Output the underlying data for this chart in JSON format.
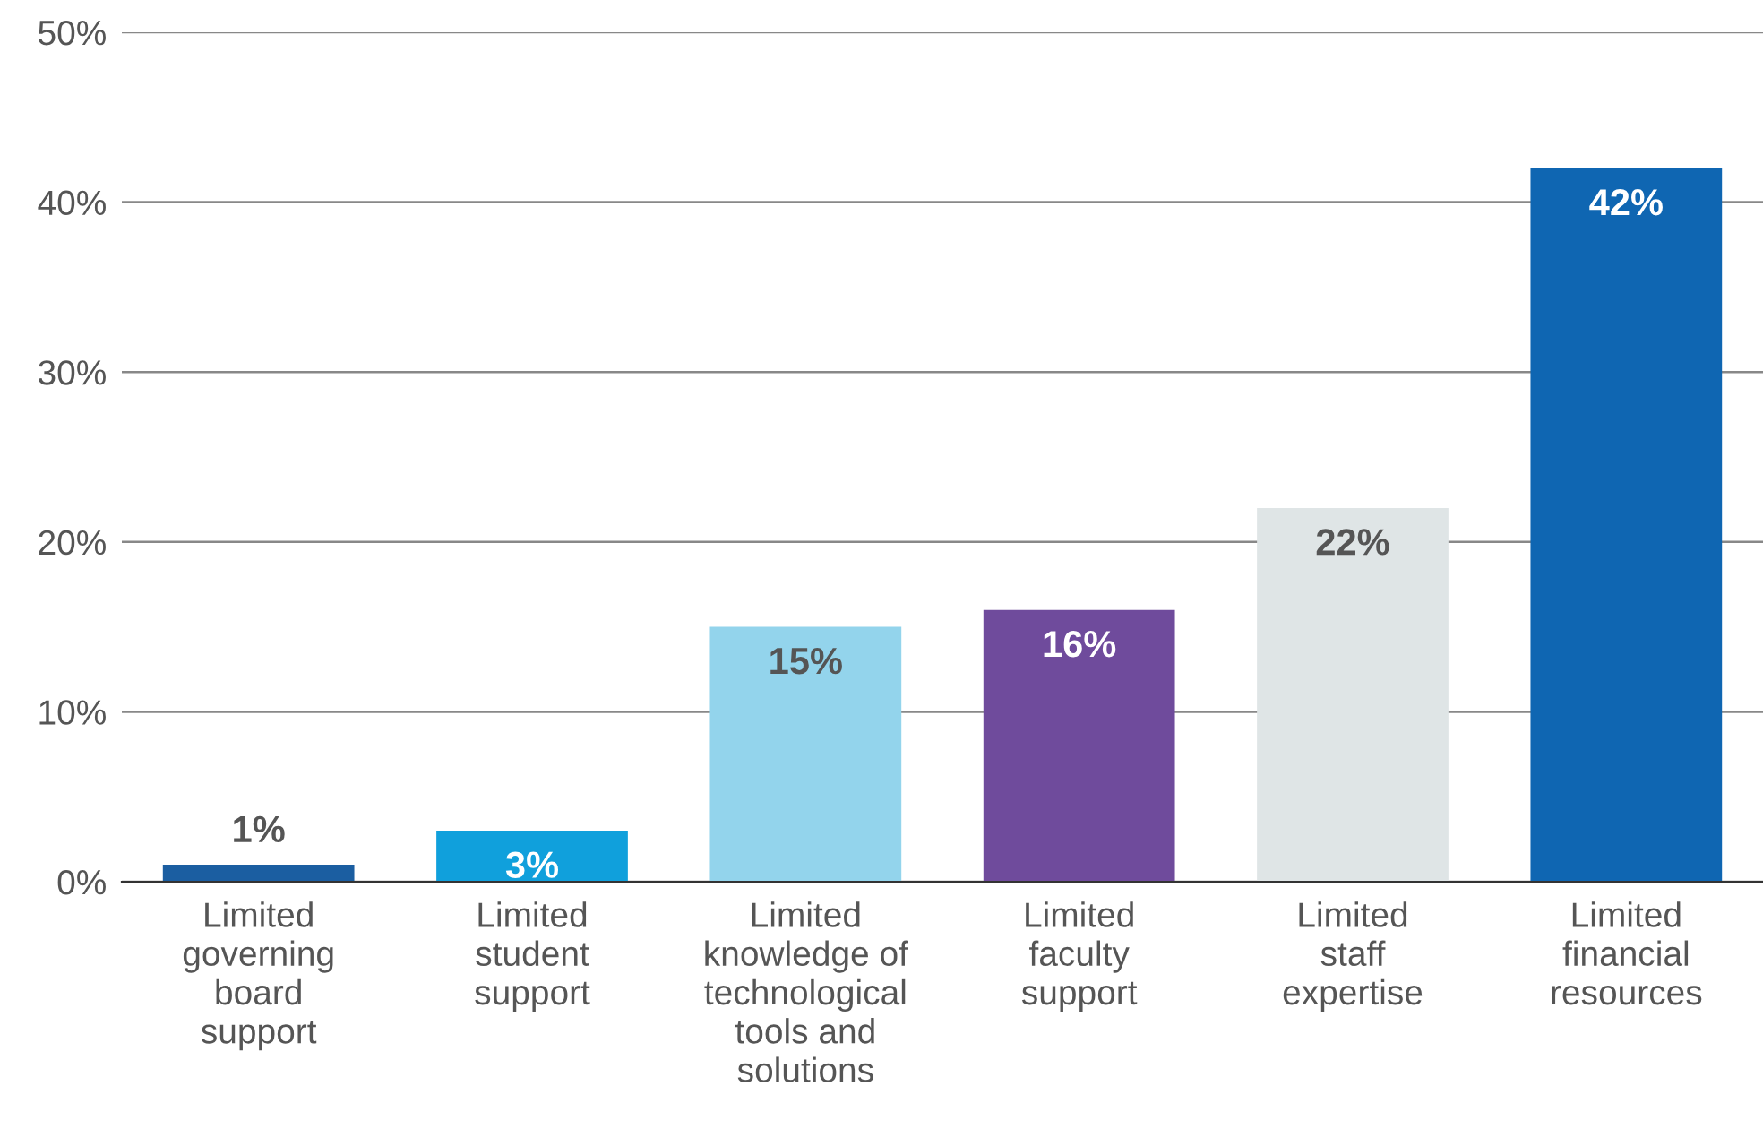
{
  "chart_data": {
    "type": "bar",
    "categories": [
      "Limited\ngoverning\nboard\nsupport",
      "Limited\nstudent\nsupport",
      "Limited\nknowledge of\ntechnological\ntools and\nsolutions",
      "Limited\nfaculty\nsupport",
      "Limited\nstaff\nexpertise",
      "Limited\nfinancial\nresources"
    ],
    "values": [
      1,
      3,
      15,
      16,
      22,
      42
    ],
    "colors": [
      "#1b5ea1",
      "#10a0dc",
      "#93d4ec",
      "#6f4b9c",
      "#dfe5e6",
      "#0f66b2"
    ],
    "ylim": [
      0,
      50
    ],
    "yticks": [
      {
        "value": 0,
        "label": "0%"
      },
      {
        "value": 10,
        "label": "10%"
      },
      {
        "value": 20,
        "label": "20%"
      },
      {
        "value": 30,
        "label": "30%"
      },
      {
        "value": 40,
        "label": "40%"
      },
      {
        "value": 50,
        "label": "50%"
      }
    ],
    "value_labels": [
      "1%",
      "3%",
      "15%",
      "16%",
      "22%",
      "42%"
    ],
    "grid": "y"
  }
}
